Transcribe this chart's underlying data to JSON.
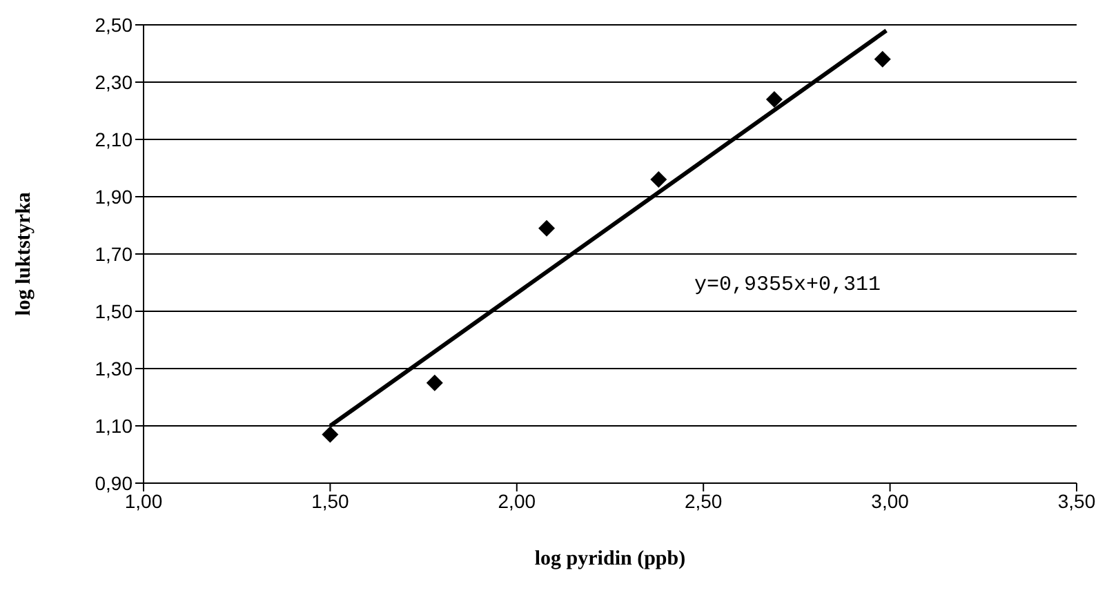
{
  "chart_data": {
    "type": "scatter",
    "xlabel": "log pyridin (ppb)",
    "ylabel": "log luktstyrka",
    "series": [
      {
        "color": "#000000",
        "marker": "diamond",
        "x": [
          1.5,
          1.78,
          2.08,
          2.38,
          2.69,
          2.98
        ],
        "values": [
          1.07,
          1.25,
          1.79,
          1.96,
          2.24,
          2.38
        ]
      },
      {
        "type": "line",
        "color": "#000000",
        "marker": "none",
        "line_style": "solid",
        "x": [
          1.5,
          2.99
        ],
        "values": [
          1.1,
          2.48
        ]
      }
    ],
    "xlim": [
      1.0,
      3.5
    ],
    "xticks": [
      {
        "value": 1.0,
        "label": "1,00"
      },
      {
        "value": 1.5,
        "label": "1,50"
      },
      {
        "value": 2.0,
        "label": "2,00"
      },
      {
        "value": 2.5,
        "label": "2,50"
      },
      {
        "value": 3.0,
        "label": "3,00"
      },
      {
        "value": 3.5,
        "label": "3,50"
      }
    ],
    "ylim": [
      0.9,
      2.5
    ],
    "yticks": [
      {
        "value": 0.9,
        "label": "0,90"
      },
      {
        "value": 1.1,
        "label": "1,10"
      },
      {
        "value": 1.3,
        "label": "1,30"
      },
      {
        "value": 1.5,
        "label": "1,50"
      },
      {
        "value": 1.7,
        "label": "1,70"
      },
      {
        "value": 1.9,
        "label": "1,90"
      },
      {
        "value": 2.1,
        "label": "2,10"
      },
      {
        "value": 2.3,
        "label": "2,30"
      },
      {
        "value": 2.5,
        "label": "2,50"
      }
    ],
    "grid": "y",
    "annotations": [
      "y=0,9355x+0,311"
    ]
  }
}
